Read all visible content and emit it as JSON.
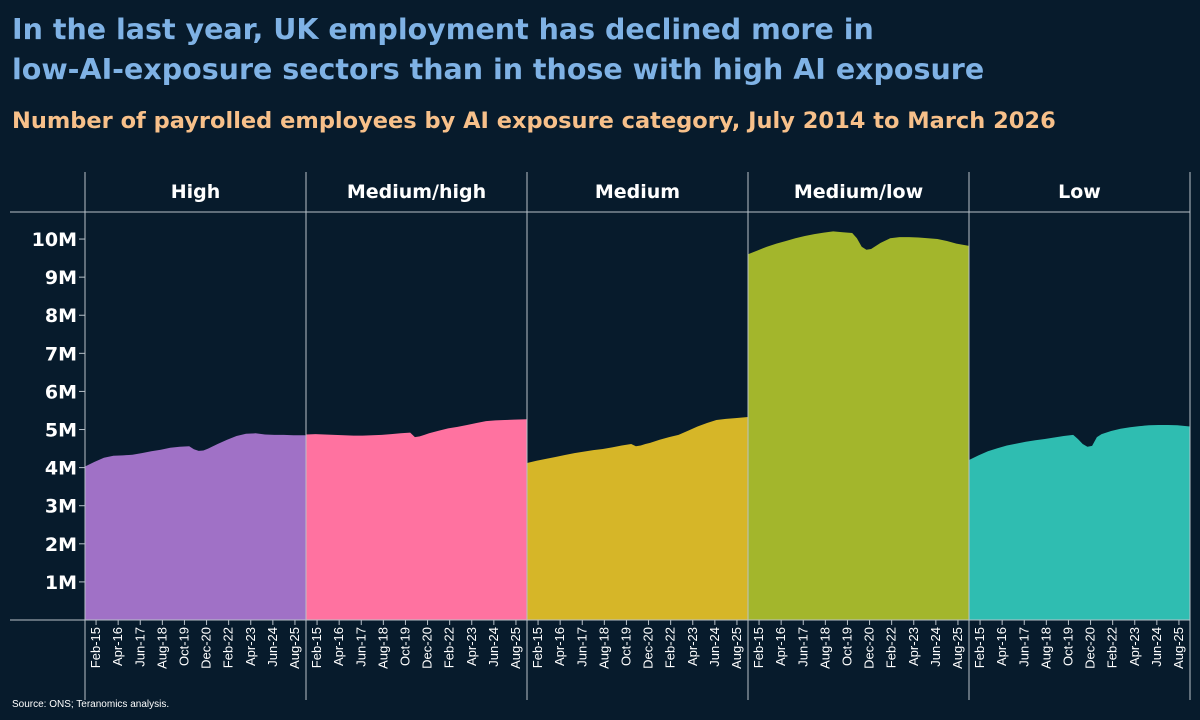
{
  "title_line1": "In the last year, UK employment has declined more in",
  "title_line2": "low-AI-exposure sectors than in those with high AI exposure",
  "subtitle": "Number of payrolled employees by AI exposure category, July 2014 to March 2026",
  "source": "Source: ONS; Teranomics analysis.",
  "colors": {
    "background": "#071b2c",
    "title": "#7fb2e5",
    "subtitle": "#f7c08a",
    "High": "#a071c6",
    "Medium/high": "#ff72a0",
    "Medium": "#d6b628",
    "Medium/low": "#a3b62c",
    "Low": "#2fbdb1"
  },
  "chart_data": {
    "type": "area",
    "facets": [
      "High",
      "Medium/high",
      "Medium",
      "Medium/low",
      "Low"
    ],
    "x_start": "2014-07",
    "x_end": "2026-03",
    "x_tick_labels": [
      "Feb-15",
      "Apr-16",
      "Jun-17",
      "Aug-18",
      "Oct-19",
      "Dec-20",
      "Feb-22",
      "Apr-23",
      "Jun-24",
      "Aug-25"
    ],
    "x_tick_dates": [
      "2015-02",
      "2016-04",
      "2017-06",
      "2018-08",
      "2019-10",
      "2020-12",
      "2022-02",
      "2023-04",
      "2024-06",
      "2025-08"
    ],
    "ylim": [
      0,
      10500000
    ],
    "y_tick_values": [
      1000000,
      2000000,
      3000000,
      4000000,
      5000000,
      6000000,
      7000000,
      8000000,
      9000000,
      10000000
    ],
    "y_tick_labels": [
      "1M",
      "2M",
      "3M",
      "4M",
      "5M",
      "6M",
      "7M",
      "8M",
      "9M",
      "10M"
    ],
    "grid": false,
    "series": [
      {
        "name": "High",
        "points": [
          [
            "2014-07",
            4.03
          ],
          [
            "2015-01",
            4.15
          ],
          [
            "2015-07",
            4.26
          ],
          [
            "2016-01",
            4.31
          ],
          [
            "2016-07",
            4.32
          ],
          [
            "2017-01",
            4.34
          ],
          [
            "2017-07",
            4.38
          ],
          [
            "2018-01",
            4.43
          ],
          [
            "2018-07",
            4.47
          ],
          [
            "2019-01",
            4.52
          ],
          [
            "2019-07",
            4.55
          ],
          [
            "2020-01",
            4.56
          ],
          [
            "2020-04",
            4.48
          ],
          [
            "2020-07",
            4.44
          ],
          [
            "2020-10",
            4.45
          ],
          [
            "2021-01",
            4.5
          ],
          [
            "2021-07",
            4.62
          ],
          [
            "2022-01",
            4.73
          ],
          [
            "2022-07",
            4.83
          ],
          [
            "2023-01",
            4.89
          ],
          [
            "2023-07",
            4.9
          ],
          [
            "2024-01",
            4.87
          ],
          [
            "2024-07",
            4.86
          ],
          [
            "2025-01",
            4.86
          ],
          [
            "2025-07",
            4.85
          ],
          [
            "2026-03",
            4.85
          ]
        ]
      },
      {
        "name": "Medium/high",
        "points": [
          [
            "2014-07",
            4.87
          ],
          [
            "2015-01",
            4.88
          ],
          [
            "2015-07",
            4.87
          ],
          [
            "2016-01",
            4.86
          ],
          [
            "2016-07",
            4.85
          ],
          [
            "2017-01",
            4.84
          ],
          [
            "2017-07",
            4.84
          ],
          [
            "2018-01",
            4.85
          ],
          [
            "2018-07",
            4.86
          ],
          [
            "2019-01",
            4.88
          ],
          [
            "2019-07",
            4.9
          ],
          [
            "2020-01",
            4.92
          ],
          [
            "2020-04",
            4.8
          ],
          [
            "2020-07",
            4.82
          ],
          [
            "2020-10",
            4.86
          ],
          [
            "2021-01",
            4.9
          ],
          [
            "2021-07",
            4.97
          ],
          [
            "2022-01",
            5.03
          ],
          [
            "2022-07",
            5.07
          ],
          [
            "2023-01",
            5.12
          ],
          [
            "2023-07",
            5.17
          ],
          [
            "2024-01",
            5.22
          ],
          [
            "2024-07",
            5.24
          ],
          [
            "2025-01",
            5.25
          ],
          [
            "2025-07",
            5.26
          ],
          [
            "2026-03",
            5.27
          ]
        ]
      },
      {
        "name": "Medium",
        "points": [
          [
            "2014-07",
            4.12
          ],
          [
            "2015-01",
            4.18
          ],
          [
            "2015-07",
            4.23
          ],
          [
            "2016-01",
            4.28
          ],
          [
            "2016-07",
            4.33
          ],
          [
            "2017-01",
            4.38
          ],
          [
            "2017-07",
            4.42
          ],
          [
            "2018-01",
            4.46
          ],
          [
            "2018-07",
            4.49
          ],
          [
            "2019-01",
            4.53
          ],
          [
            "2019-07",
            4.58
          ],
          [
            "2020-01",
            4.62
          ],
          [
            "2020-04",
            4.56
          ],
          [
            "2020-07",
            4.58
          ],
          [
            "2020-10",
            4.62
          ],
          [
            "2021-01",
            4.65
          ],
          [
            "2021-07",
            4.73
          ],
          [
            "2022-01",
            4.8
          ],
          [
            "2022-07",
            4.86
          ],
          [
            "2023-01",
            4.97
          ],
          [
            "2023-07",
            5.08
          ],
          [
            "2024-01",
            5.17
          ],
          [
            "2024-07",
            5.25
          ],
          [
            "2025-01",
            5.28
          ],
          [
            "2025-07",
            5.3
          ],
          [
            "2026-03",
            5.33
          ]
        ]
      },
      {
        "name": "Medium/low",
        "points": [
          [
            "2014-07",
            9.6
          ],
          [
            "2015-01",
            9.7
          ],
          [
            "2015-07",
            9.8
          ],
          [
            "2016-01",
            9.88
          ],
          [
            "2016-07",
            9.95
          ],
          [
            "2017-01",
            10.02
          ],
          [
            "2017-07",
            10.08
          ],
          [
            "2018-01",
            10.13
          ],
          [
            "2018-07",
            10.17
          ],
          [
            "2019-01",
            10.2
          ],
          [
            "2019-07",
            10.18
          ],
          [
            "2020-01",
            10.16
          ],
          [
            "2020-04",
            10.02
          ],
          [
            "2020-07",
            9.8
          ],
          [
            "2020-10",
            9.72
          ],
          [
            "2021-01",
            9.74
          ],
          [
            "2021-07",
            9.9
          ],
          [
            "2022-01",
            10.02
          ],
          [
            "2022-07",
            10.05
          ],
          [
            "2023-01",
            10.05
          ],
          [
            "2023-07",
            10.04
          ],
          [
            "2024-01",
            10.02
          ],
          [
            "2024-07",
            10.0
          ],
          [
            "2025-01",
            9.95
          ],
          [
            "2025-07",
            9.88
          ],
          [
            "2026-03",
            9.82
          ]
        ]
      },
      {
        "name": "Low",
        "points": [
          [
            "2014-07",
            4.2
          ],
          [
            "2015-01",
            4.32
          ],
          [
            "2015-07",
            4.43
          ],
          [
            "2016-01",
            4.51
          ],
          [
            "2016-07",
            4.58
          ],
          [
            "2017-01",
            4.63
          ],
          [
            "2017-07",
            4.68
          ],
          [
            "2018-01",
            4.72
          ],
          [
            "2018-07",
            4.75
          ],
          [
            "2019-01",
            4.79
          ],
          [
            "2019-07",
            4.83
          ],
          [
            "2020-01",
            4.86
          ],
          [
            "2020-04",
            4.75
          ],
          [
            "2020-07",
            4.62
          ],
          [
            "2020-10",
            4.55
          ],
          [
            "2021-01",
            4.57
          ],
          [
            "2021-04",
            4.8
          ],
          [
            "2021-07",
            4.88
          ],
          [
            "2022-01",
            4.96
          ],
          [
            "2022-07",
            5.02
          ],
          [
            "2023-01",
            5.06
          ],
          [
            "2023-07",
            5.09
          ],
          [
            "2024-01",
            5.11
          ],
          [
            "2024-07",
            5.12
          ],
          [
            "2025-01",
            5.12
          ],
          [
            "2025-07",
            5.11
          ],
          [
            "2026-03",
            5.08
          ]
        ]
      }
    ],
    "value_unit_multiplier": 1000000
  }
}
